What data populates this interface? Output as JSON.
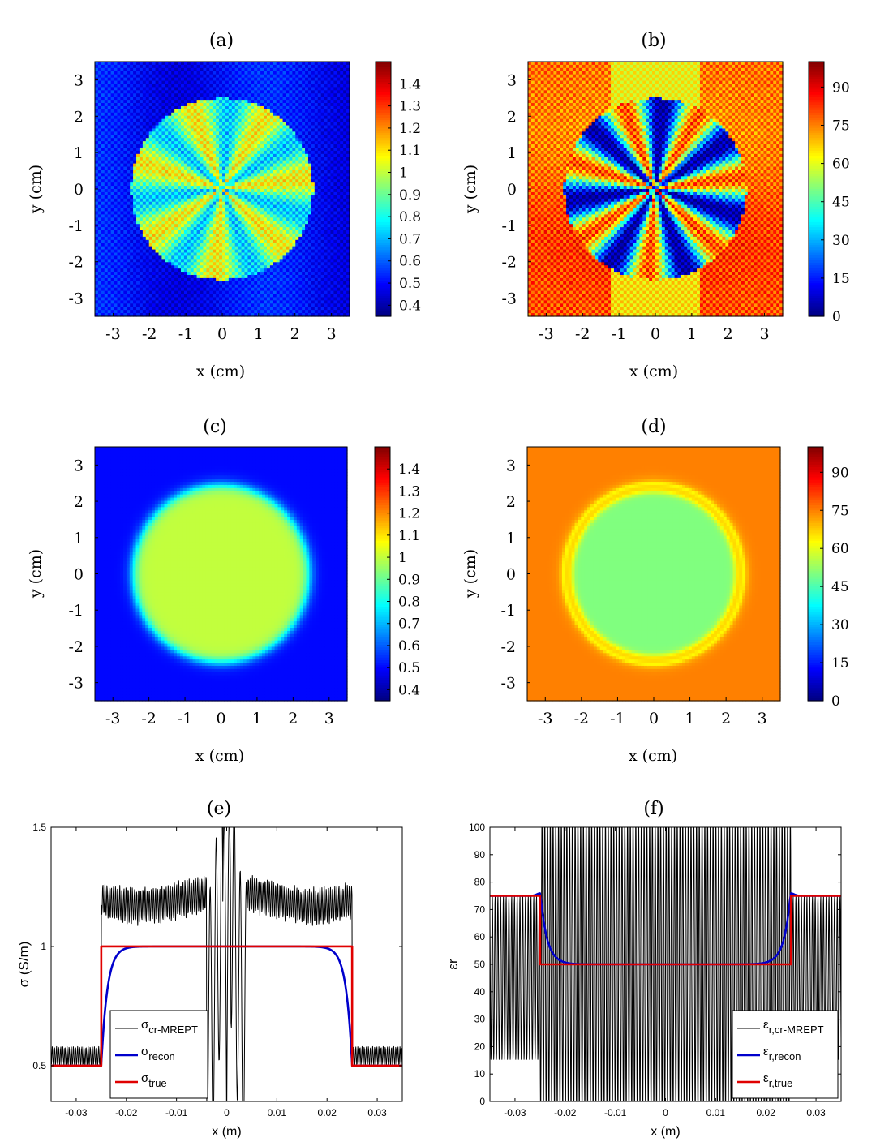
{
  "chart_data": [
    {
      "id": "a",
      "type": "heatmap",
      "title": "(a)",
      "xlabel": "x (cm)",
      "ylabel": "y (cm)",
      "xlim": [
        -3.5,
        3.5
      ],
      "ylim": [
        -3.5,
        3.5
      ],
      "xticks": [
        "-3",
        "-2",
        "-1",
        "0",
        "1",
        "2",
        "3"
      ],
      "yticks": [
        "3",
        "2",
        "1",
        "0",
        "-1",
        "-2",
        "-3"
      ],
      "colormap": "jet",
      "clim": [
        0.35,
        1.5
      ],
      "colorbar_ticks": [
        "1.4",
        "1.3",
        "1.2",
        "1.1",
        "1",
        "0.9",
        "0.8",
        "0.7",
        "0.6",
        "0.5",
        "0.4"
      ],
      "colorbar_values": [
        1.4,
        1.3,
        1.2,
        1.1,
        1.0,
        0.9,
        0.8,
        0.7,
        0.6,
        0.5,
        0.4
      ],
      "background_value": 0.5,
      "disk_radius": 2.5,
      "disk_value": 0.9,
      "pattern": "noisy radial streaks"
    },
    {
      "id": "b",
      "type": "heatmap",
      "title": "(b)",
      "xlabel": "x (cm)",
      "ylabel": "y (cm)",
      "xlim": [
        -3.5,
        3.5
      ],
      "ylim": [
        -3.5,
        3.5
      ],
      "xticks": [
        "-3",
        "-2",
        "-1",
        "0",
        "1",
        "2",
        "3"
      ],
      "yticks": [
        "3",
        "2",
        "1",
        "0",
        "-1",
        "-2",
        "-3"
      ],
      "colormap": "jet",
      "clim": [
        0,
        100
      ],
      "colorbar_ticks": [
        "90",
        "75",
        "60",
        "45",
        "30",
        "15",
        "0"
      ],
      "colorbar_values": [
        90,
        75,
        60,
        45,
        30,
        15,
        0
      ],
      "background_value": 75,
      "disk_radius": 2.5,
      "disk_value": 40,
      "pattern": "noisy radial streaks"
    },
    {
      "id": "c",
      "type": "heatmap",
      "title": "(c)",
      "xlabel": "x (cm)",
      "ylabel": "y (cm)",
      "xlim": [
        -3.5,
        3.5
      ],
      "ylim": [
        -3.5,
        3.5
      ],
      "xticks": [
        "-3",
        "-2",
        "-1",
        "0",
        "1",
        "2",
        "3"
      ],
      "yticks": [
        "3",
        "2",
        "1",
        "0",
        "-1",
        "-2",
        "-3"
      ],
      "colormap": "jet",
      "clim": [
        0.35,
        1.5
      ],
      "colorbar_ticks": [
        "1.4",
        "1.3",
        "1.2",
        "1.1",
        "1",
        "0.9",
        "0.8",
        "0.7",
        "0.6",
        "0.5",
        "0.4"
      ],
      "colorbar_values": [
        1.4,
        1.3,
        1.2,
        1.1,
        1.0,
        0.9,
        0.8,
        0.7,
        0.6,
        0.5,
        0.4
      ],
      "background_value": 0.5,
      "disk_radius": 2.45,
      "disk_value": 1.0,
      "pattern": "smooth"
    },
    {
      "id": "d",
      "type": "heatmap",
      "title": "(d)",
      "xlabel": "x (cm)",
      "ylabel": "y (cm)",
      "xlim": [
        -3.5,
        3.5
      ],
      "ylim": [
        -3.5,
        3.5
      ],
      "xticks": [
        "-3",
        "-2",
        "-1",
        "0",
        "1",
        "2",
        "3"
      ],
      "yticks": [
        "3",
        "2",
        "1",
        "0",
        "-1",
        "-2",
        "-3"
      ],
      "colormap": "jet",
      "clim": [
        0,
        100
      ],
      "colorbar_ticks": [
        "90",
        "75",
        "60",
        "45",
        "30",
        "15",
        "0"
      ],
      "colorbar_values": [
        90,
        75,
        60,
        45,
        30,
        15,
        0
      ],
      "background_value": 75,
      "disk_radius": 2.45,
      "disk_value": 50,
      "pattern": "smooth with ring"
    },
    {
      "id": "e",
      "type": "line",
      "title": "(e)",
      "xlabel": "x (m)",
      "ylabel": "σ  (S/m)",
      "xlim": [
        -0.035,
        0.035
      ],
      "ylim": [
        0.35,
        1.5
      ],
      "xticks": [
        "-0.03",
        "-0.02",
        "-0.01",
        "0",
        "0.01",
        "0.02",
        "0.03"
      ],
      "xtick_values": [
        -0.03,
        -0.02,
        -0.01,
        0,
        0.01,
        0.02,
        0.03
      ],
      "yticks": [
        "1.5",
        "1",
        "0.5"
      ],
      "ytick_values": [
        1.5,
        1.0,
        0.5
      ],
      "legend_position": "bottom-left",
      "series": [
        {
          "name": "σcr-MREPT",
          "symbol": "σ",
          "sub": "cr-MREPT",
          "color": "#000000",
          "style": "oscillating",
          "inside_mean": 1.2,
          "inside_amp": 0.07,
          "outside_mean": 0.54,
          "outside_amp": 0.04
        },
        {
          "name": "σrecon",
          "symbol": "σ",
          "sub": "recon",
          "color": "#0000cc",
          "style": "smooth-step",
          "inside": 1.0,
          "outside": 0.5
        },
        {
          "name": "σtrue",
          "symbol": "σ",
          "sub": "true",
          "color": "#e00000",
          "style": "step",
          "inside": 1.0,
          "outside": 0.5,
          "edge": 0.025
        }
      ]
    },
    {
      "id": "f",
      "type": "line",
      "title": "(f)",
      "xlabel": "x (m)",
      "ylabel": "εr",
      "xlim": [
        -0.035,
        0.035
      ],
      "ylim": [
        0,
        100
      ],
      "xticks": [
        "-0.03",
        "-0.02",
        "-0.01",
        "0",
        "0.01",
        "0.02",
        "0.03"
      ],
      "xtick_values": [
        -0.03,
        -0.02,
        -0.01,
        0,
        0.01,
        0.02,
        0.03
      ],
      "yticks": [
        "100",
        "90",
        "80",
        "70",
        "60",
        "50",
        "40",
        "30",
        "20",
        "10",
        "0"
      ],
      "ytick_values": [
        100,
        90,
        80,
        70,
        60,
        50,
        40,
        30,
        20,
        10,
        0
      ],
      "legend_position": "bottom-right",
      "series": [
        {
          "name": "εr,cr-MREPT",
          "symbol": "ε",
          "sub": "r,cr-MREPT",
          "color": "#000000",
          "style": "oscillating",
          "inside_mean": 50,
          "inside_amp": 55,
          "outside_mean": 45,
          "outside_amp": 30
        },
        {
          "name": "εr,recon",
          "symbol": "ε",
          "sub": "r,recon",
          "color": "#0000cc",
          "style": "smooth-step-overshoot",
          "inside": 50,
          "outside": 75,
          "peak": 76.5
        },
        {
          "name": "εr,true",
          "symbol": "ε",
          "sub": "r,true",
          "color": "#e00000",
          "style": "step",
          "inside": 50,
          "outside": 75,
          "edge": 0.025
        }
      ]
    }
  ]
}
